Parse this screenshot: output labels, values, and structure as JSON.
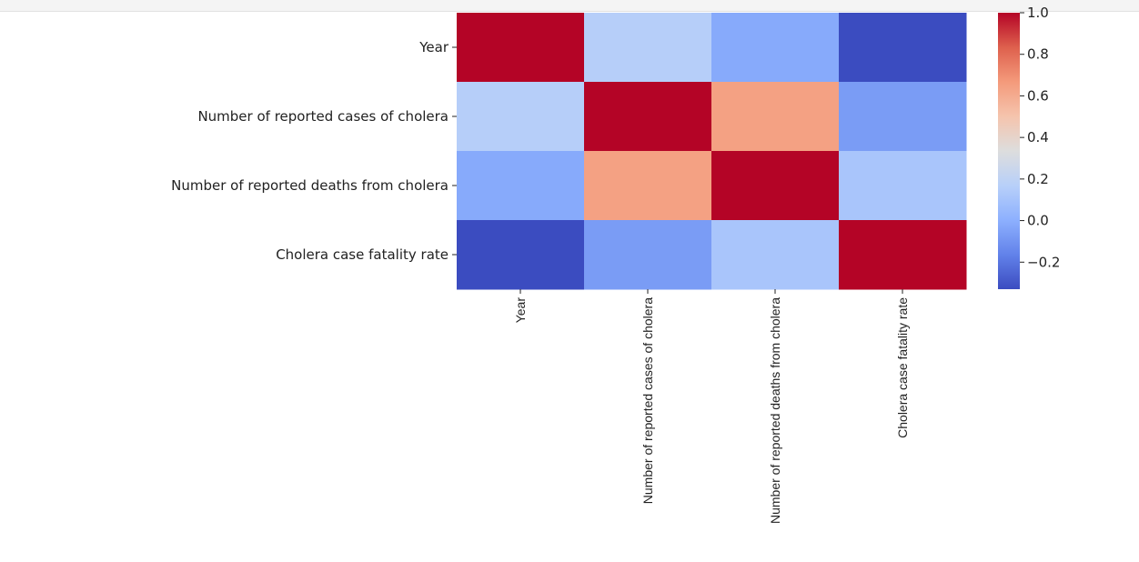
{
  "chart_data": {
    "type": "heatmap",
    "title": "",
    "xlabel": "",
    "ylabel": "",
    "categories": [
      "Year",
      "Number of reported cases of cholera",
      "Number of reported deaths from cholera",
      "Cholera case fatality rate"
    ],
    "values": [
      [
        1.0,
        0.16,
        -0.02,
        -0.33
      ],
      [
        0.16,
        1.0,
        0.64,
        -0.07
      ],
      [
        -0.02,
        0.64,
        1.0,
        0.11
      ],
      [
        -0.33,
        -0.07,
        0.11,
        1.0
      ]
    ],
    "colormap": "coolwarm",
    "color_range": [
      -0.33,
      1.0
    ],
    "colorbar_ticks": [
      {
        "value": 1.0,
        "label": "1.0"
      },
      {
        "value": 0.8,
        "label": "0.8"
      },
      {
        "value": 0.6,
        "label": "0.6"
      },
      {
        "value": 0.4,
        "label": "0.4"
      },
      {
        "value": 0.2,
        "label": "0.2"
      },
      {
        "value": 0.0,
        "label": "0.0"
      },
      {
        "value": -0.2,
        "label": "−0.2"
      }
    ],
    "grid": false,
    "legend": "colorbar-right"
  }
}
